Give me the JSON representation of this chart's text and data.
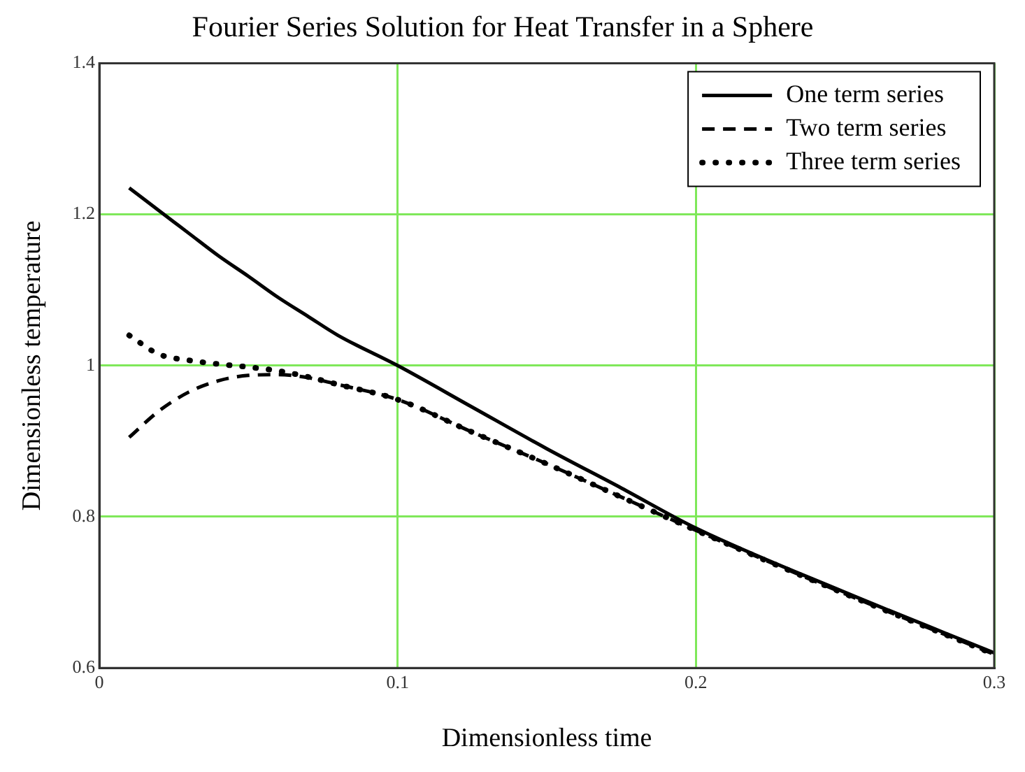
{
  "chart_data": {
    "type": "line",
    "title": "Fourier Series Solution for Heat Transfer in a Sphere",
    "xlabel": "Dimensionless time",
    "ylabel": "Dimensionless temperature",
    "x": [
      0.01,
      0.02,
      0.03,
      0.04,
      0.05,
      0.06,
      0.07,
      0.08,
      0.1,
      0.125,
      0.15,
      0.175,
      0.2,
      0.25,
      0.3
    ],
    "series": [
      {
        "name": "One term series",
        "color": "#000000",
        "line_style": "solid",
        "values": [
          1.235,
          1.205,
          1.175,
          1.145,
          1.118,
          1.09,
          1.065,
          1.04,
          1.0,
          0.945,
          0.89,
          0.838,
          0.785,
          0.7,
          0.62
        ]
      },
      {
        "name": "Two term series",
        "color": "#000000",
        "line_style": "dashed",
        "values": [
          0.905,
          0.94,
          0.965,
          0.98,
          0.987,
          0.988,
          0.984,
          0.975,
          0.955,
          0.912,
          0.87,
          0.826,
          0.782,
          0.698,
          0.618
        ]
      },
      {
        "name": "Three term series",
        "color": "#000000",
        "line_style": "dotted",
        "values": [
          1.04,
          1.015,
          1.007,
          1.002,
          0.998,
          0.993,
          0.985,
          0.975,
          0.955,
          0.912,
          0.87,
          0.826,
          0.782,
          0.698,
          0.618
        ]
      }
    ],
    "xlim": [
      0,
      0.3
    ],
    "xticks": [
      0,
      0.1,
      0.2,
      0.3
    ],
    "ylim": [
      0.6,
      1.4
    ],
    "yticks": [
      0.6,
      0.8,
      1,
      1.2,
      1.4
    ],
    "grid": true,
    "legend": "top right",
    "marker": "none"
  }
}
